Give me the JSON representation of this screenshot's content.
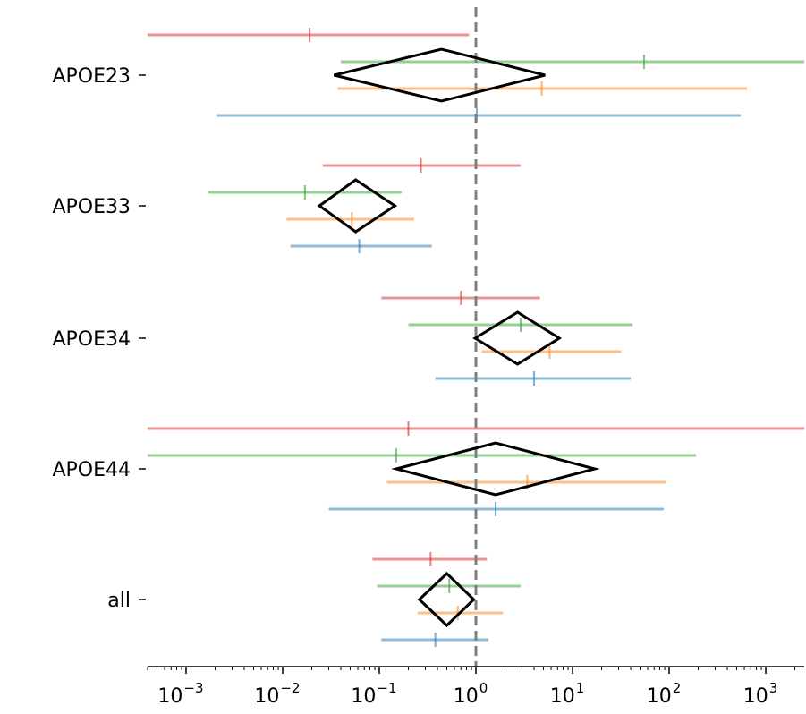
{
  "chart_data": {
    "type": "forest",
    "x_scale": "log",
    "xlim": [
      0.0004,
      2500
    ],
    "x_ticks": [
      {
        "base": "10",
        "exp": "−3",
        "value": 0.001
      },
      {
        "base": "10",
        "exp": "−2",
        "value": 0.01
      },
      {
        "base": "10",
        "exp": "−1",
        "value": 0.1
      },
      {
        "base": "10",
        "exp": "0",
        "value": 1
      },
      {
        "base": "10",
        "exp": "1",
        "value": 10
      },
      {
        "base": "10",
        "exp": "2",
        "value": 100
      },
      {
        "base": "10",
        "exp": "3",
        "value": 1000
      }
    ],
    "reference_line": 1,
    "categories": [
      "APOE23",
      "APOE33",
      "APOE34",
      "APOE44",
      "all"
    ],
    "series": [
      {
        "color": "#d62728",
        "points": [
          {
            "low": 0.0004,
            "est": 0.019,
            "high": 0.85
          },
          {
            "low": 0.026,
            "est": 0.27,
            "high": 2.9
          },
          {
            "low": 0.105,
            "est": 0.7,
            "high": 4.6
          },
          {
            "low": 0.0004,
            "est": 0.2,
            "high": 2500
          },
          {
            "low": 0.085,
            "est": 0.34,
            "high": 1.3
          }
        ]
      },
      {
        "color": "#2ca02c",
        "points": [
          {
            "low": 0.04,
            "est": 55,
            "high": 2500
          },
          {
            "low": 0.0017,
            "est": 0.017,
            "high": 0.17
          },
          {
            "low": 0.2,
            "est": 2.9,
            "high": 42
          },
          {
            "low": 0.0004,
            "est": 0.15,
            "high": 190
          },
          {
            "low": 0.095,
            "est": 0.53,
            "high": 2.9
          }
        ]
      },
      {
        "color": "#ff7f0e",
        "points": [
          {
            "low": 0.037,
            "est": 4.8,
            "high": 640
          },
          {
            "low": 0.011,
            "est": 0.052,
            "high": 0.23
          },
          {
            "low": 1.15,
            "est": 5.8,
            "high": 32
          },
          {
            "low": 0.12,
            "est": 3.4,
            "high": 92
          },
          {
            "low": 0.25,
            "est": 0.65,
            "high": 1.9
          }
        ]
      },
      {
        "color": "#1f77b4",
        "points": [
          {
            "low": 0.0021,
            "est": 1.02,
            "high": 550
          },
          {
            "low": 0.012,
            "est": 0.062,
            "high": 0.35
          },
          {
            "low": 0.38,
            "est": 4.0,
            "high": 40
          },
          {
            "low": 0.03,
            "est": 1.6,
            "high": 88
          },
          {
            "low": 0.105,
            "est": 0.38,
            "high": 1.35
          }
        ]
      }
    ],
    "pooled": [
      {
        "low": 0.034,
        "est": 0.44,
        "high": 5.2
      },
      {
        "low": 0.024,
        "est": 0.057,
        "high": 0.145
      },
      {
        "low": 0.98,
        "est": 2.7,
        "high": 7.3
      },
      {
        "low": 0.15,
        "est": 1.6,
        "high": 17
      },
      {
        "low": 0.26,
        "est": 0.5,
        "high": 0.95
      }
    ]
  }
}
